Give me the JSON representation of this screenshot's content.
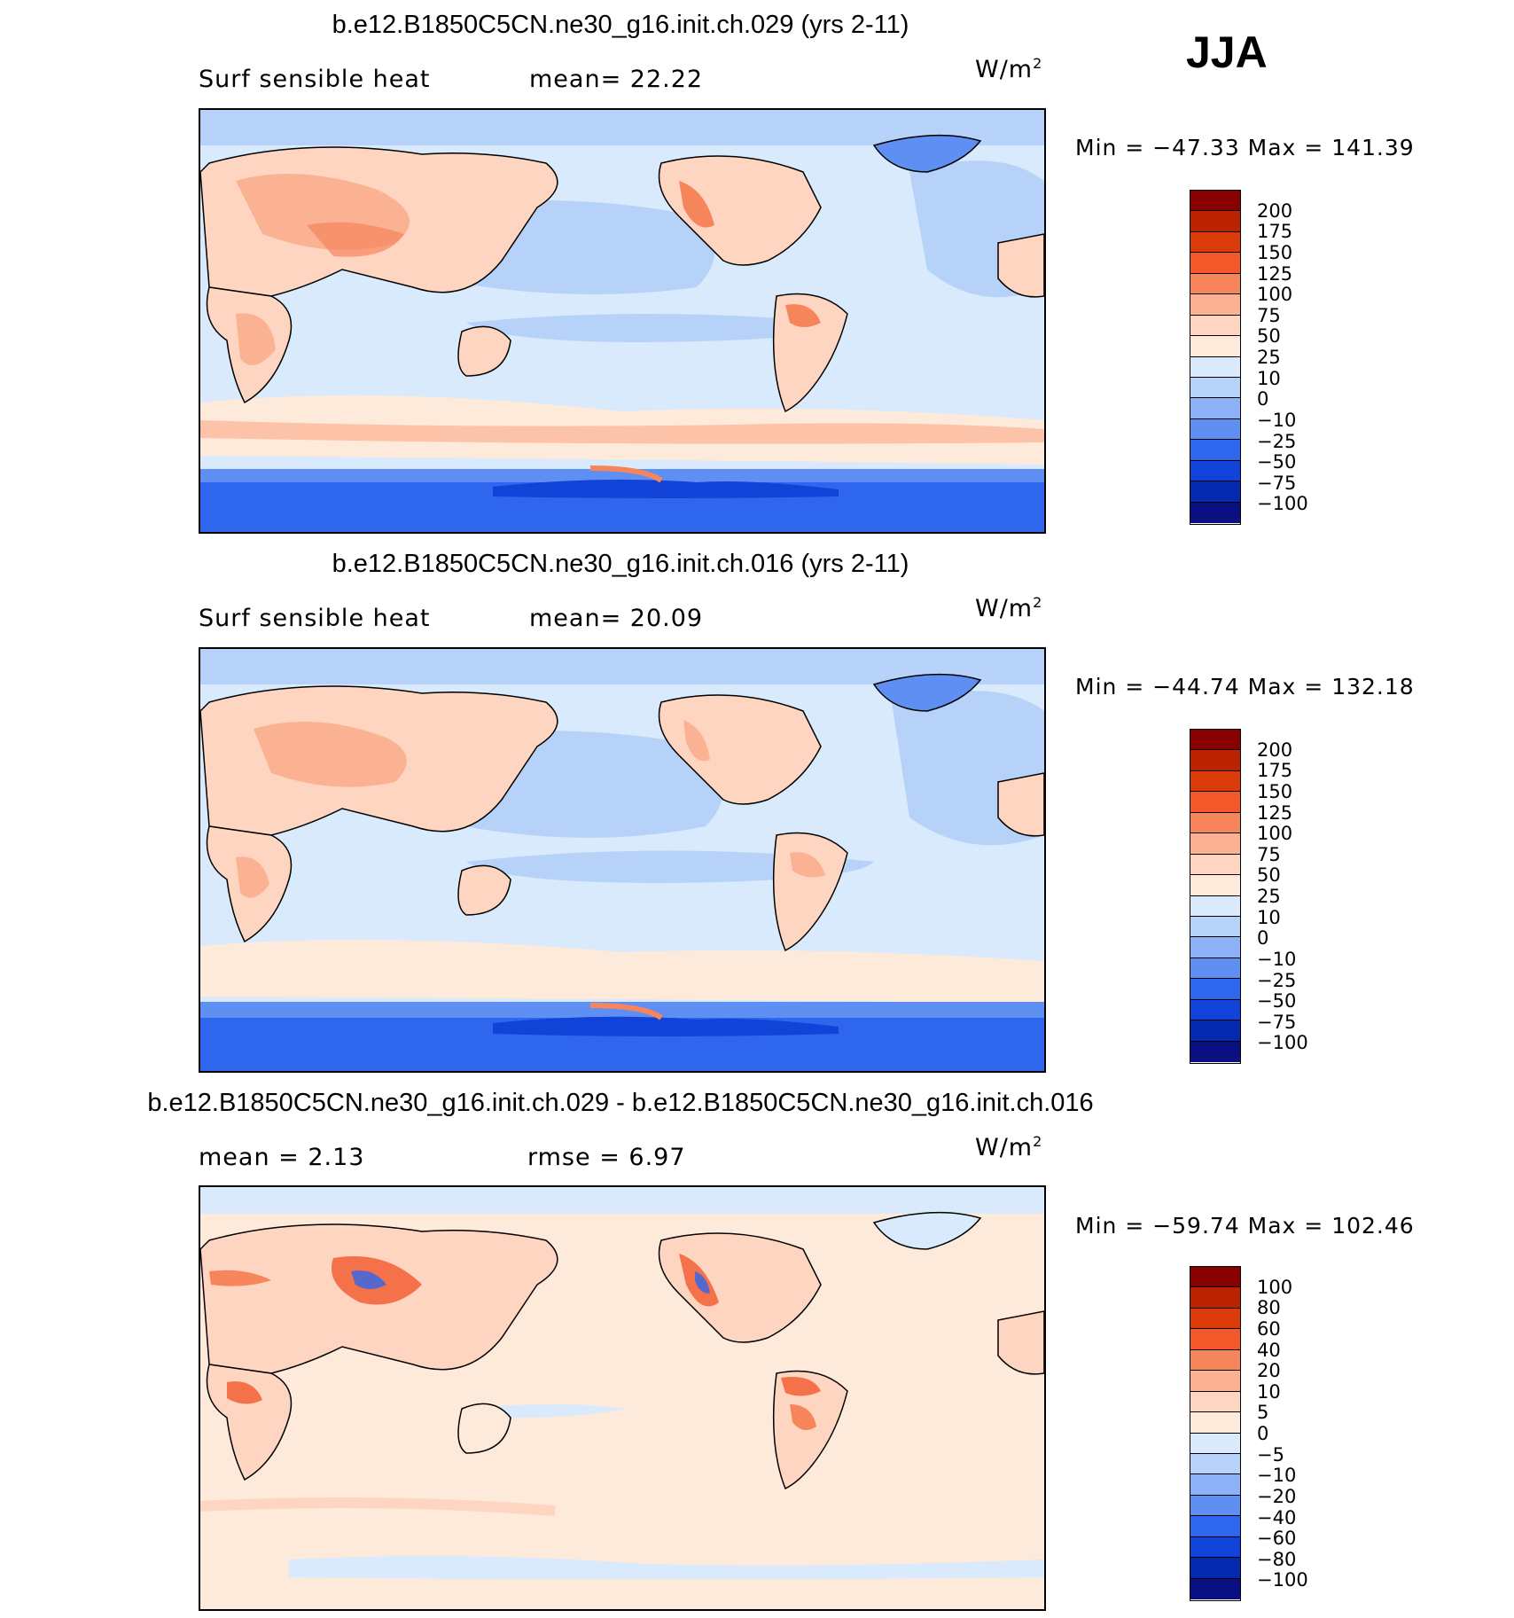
{
  "season": "JJA",
  "panels": [
    {
      "title": "b.e12.B1850C5CN.ne30_g16.init.ch.029 (yrs 2-11)",
      "left_label": "Surf  sensible  heat",
      "mid_label": "mean=   22.22",
      "units": "W/m",
      "units_sup": "2",
      "minmax": "Min  =  −47.33  Max  =  141.39",
      "colorbar": {
        "labels": [
          "200",
          "175",
          "150",
          "125",
          "100",
          "75",
          "50",
          "25",
          "10",
          "0",
          "−10",
          "−25",
          "−50",
          "−75",
          "−100"
        ],
        "colors": [
          "#880000",
          "#bb2200",
          "#dd3a0c",
          "#f2582a",
          "#f7855c",
          "#fbb293",
          "#fdd5c0",
          "#fdeadb",
          "#d8eafb",
          "#b7d2f8",
          "#8db2f7",
          "#5f8ff3",
          "#2f66ee",
          "#1143d9",
          "#0529ae",
          "#0a0f82"
        ]
      }
    },
    {
      "title": "b.e12.B1850C5CN.ne30_g16.init.ch.016 (yrs 2-11)",
      "left_label": "Surf  sensible  heat",
      "mid_label": "mean=   20.09",
      "units": "W/m",
      "units_sup": "2",
      "minmax": "Min  =  −44.74  Max  =  132.18",
      "colorbar": {
        "labels": [
          "200",
          "175",
          "150",
          "125",
          "100",
          "75",
          "50",
          "25",
          "10",
          "0",
          "−10",
          "−25",
          "−50",
          "−75",
          "−100"
        ],
        "colors": [
          "#880000",
          "#bb2200",
          "#dd3a0c",
          "#f2582a",
          "#f7855c",
          "#fbb293",
          "#fdd5c0",
          "#fdeadb",
          "#d8eafb",
          "#b7d2f8",
          "#8db2f7",
          "#5f8ff3",
          "#2f66ee",
          "#1143d9",
          "#0529ae",
          "#0a0f82"
        ]
      }
    },
    {
      "title": "b.e12.B1850C5CN.ne30_g16.init.ch.029 - b.e12.B1850C5CN.ne30_g16.init.ch.016",
      "left_label": "mean  =     2.13",
      "mid_label": "rmse  =     6.97",
      "units": "W/m",
      "units_sup": "2",
      "minmax": "Min  =  −59.74  Max  =  102.46",
      "colorbar": {
        "labels": [
          "100",
          "80",
          "60",
          "40",
          "20",
          "10",
          "5",
          "0",
          "−5",
          "−10",
          "−20",
          "−40",
          "−60",
          "−80",
          "−100"
        ],
        "colors": [
          "#880000",
          "#bb2200",
          "#dd3a0c",
          "#f2582a",
          "#f7855c",
          "#fbb293",
          "#fdd5c0",
          "#fdeadb",
          "#d8eafb",
          "#b7d2f8",
          "#8db2f7",
          "#5f8ff3",
          "#2f66ee",
          "#1143d9",
          "#0529ae",
          "#0a0f82"
        ]
      }
    }
  ]
}
